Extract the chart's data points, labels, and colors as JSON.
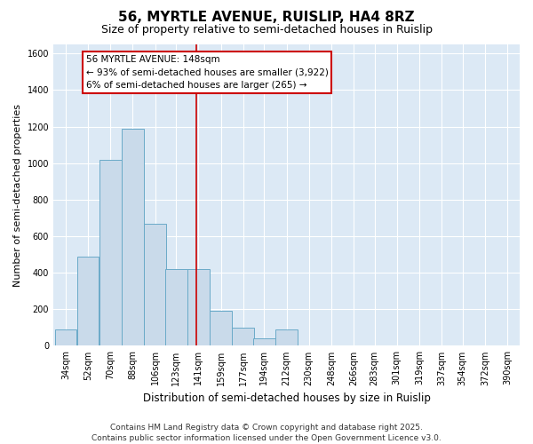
{
  "title": "56, MYRTLE AVENUE, RUISLIP, HA4 8RZ",
  "subtitle": "Size of property relative to semi-detached houses in Ruislip",
  "xlabel": "Distribution of semi-detached houses by size in Ruislip",
  "ylabel": "Number of semi-detached properties",
  "categories": [
    "34sqm",
    "52sqm",
    "70sqm",
    "88sqm",
    "106sqm",
    "123sqm",
    "141sqm",
    "159sqm",
    "177sqm",
    "194sqm",
    "212sqm",
    "230sqm",
    "248sqm",
    "266sqm",
    "283sqm",
    "301sqm",
    "319sqm",
    "337sqm",
    "354sqm",
    "372sqm",
    "390sqm"
  ],
  "bin_left_edges": [
    34,
    52,
    70,
    88,
    106,
    123,
    141,
    159,
    177,
    194,
    212,
    230,
    248,
    266,
    283,
    301,
    319,
    337,
    354,
    372,
    390
  ],
  "bin_width": 18,
  "values": [
    90,
    490,
    1020,
    1190,
    670,
    420,
    420,
    190,
    100,
    40,
    90,
    0,
    0,
    0,
    0,
    0,
    0,
    0,
    0,
    0,
    0
  ],
  "bar_color": "#c9daea",
  "bar_edge_color": "#6aaac8",
  "vline_x": 148,
  "vline_color": "#cc0000",
  "ylim": [
    0,
    1650
  ],
  "yticks": [
    0,
    200,
    400,
    600,
    800,
    1000,
    1200,
    1400,
    1600
  ],
  "annotation_title": "56 MYRTLE AVENUE: 148sqm",
  "annotation_line1": "← 93% of semi-detached houses are smaller (3,922)",
  "annotation_line2": "6% of semi-detached houses are larger (265) →",
  "annotation_box_color": "#cc0000",
  "annotation_bg_color": "#ffffff",
  "footer_line1": "Contains HM Land Registry data © Crown copyright and database right 2025.",
  "footer_line2": "Contains public sector information licensed under the Open Government Licence v3.0.",
  "plot_bg_color": "#dce9f5",
  "fig_bg_color": "#ffffff",
  "grid_color": "#ffffff",
  "title_fontsize": 11,
  "subtitle_fontsize": 9,
  "tick_fontsize": 7,
  "ylabel_fontsize": 8,
  "xlabel_fontsize": 8.5,
  "annotation_fontsize": 7.5,
  "footer_fontsize": 6.5
}
